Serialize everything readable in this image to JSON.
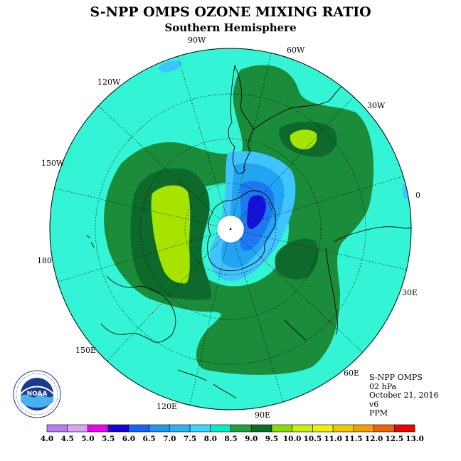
{
  "title": "S-NPP OMPS OZONE MIXING RATIO",
  "subtitle": "Southern Hemisphere",
  "longitude_labels": [
    "90W",
    "60W",
    "30W",
    "0",
    "30E",
    "60E",
    "90E",
    "120E",
    "150E",
    "180",
    "150W",
    "120W"
  ],
  "info": {
    "instrument": "S-NPP OMPS",
    "level": "02 hPa",
    "date": "October 21, 2016",
    "version": "v6",
    "units": "PPM"
  },
  "colorbar": {
    "ticks": [
      "4.0",
      "4.5",
      "5.0",
      "5.5",
      "6.0",
      "6.5",
      "7.0",
      "7.5",
      "8.0",
      "8.5",
      "9.0",
      "9.5",
      "10.0",
      "10.5",
      "11.0",
      "11.5",
      "12.0",
      "12.5",
      "13.0"
    ],
    "colors": [
      "#b97bf0",
      "#dca2f2",
      "#f000f0",
      "#1a00e0",
      "#1464ff",
      "#1e96f0",
      "#28b4f5",
      "#38d6ff",
      "#00f0c8",
      "#22a03a",
      "#0e6e28",
      "#8adc00",
      "#c8f000",
      "#f0f000",
      "#f0c800",
      "#f0a000",
      "#f06400",
      "#f00000",
      "#8b5a3c"
    ]
  },
  "field_colors": {
    "background_cyan": "#33f5d5",
    "green_85": "#1a8c3a",
    "darkgreen_90": "#0e6a2c",
    "lime_95": "#a6e400",
    "blue_75": "#40c4ff",
    "blue_70": "#22a4f2",
    "blue_65": "#1e78f0",
    "blue_60": "#1212d8"
  },
  "logo": {
    "text": "NOAA",
    "ring_text": "NATIONAL OCEANIC AND ATMOSPHERIC ADMINISTRATION · U.S. DEPARTMENT OF COMMERCE"
  }
}
